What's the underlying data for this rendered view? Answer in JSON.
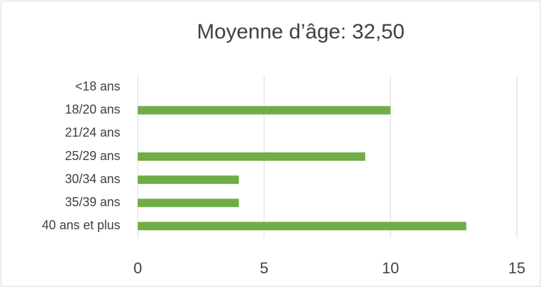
{
  "chart_data": {
    "type": "bar",
    "orientation": "horizontal",
    "title": "Moyenne d’âge: 32,50",
    "categories": [
      "<18 ans",
      "18/20 ans",
      "21/24 ans",
      "25/29 ans",
      "30/34 ans",
      "35/39 ans",
      "40 ans et plus"
    ],
    "values": [
      0,
      10,
      0,
      9,
      4,
      4,
      13
    ],
    "color": "#70ad47",
    "xlim": [
      0,
      15
    ],
    "xticks": [
      0,
      5,
      10,
      15
    ],
    "grid": true
  }
}
